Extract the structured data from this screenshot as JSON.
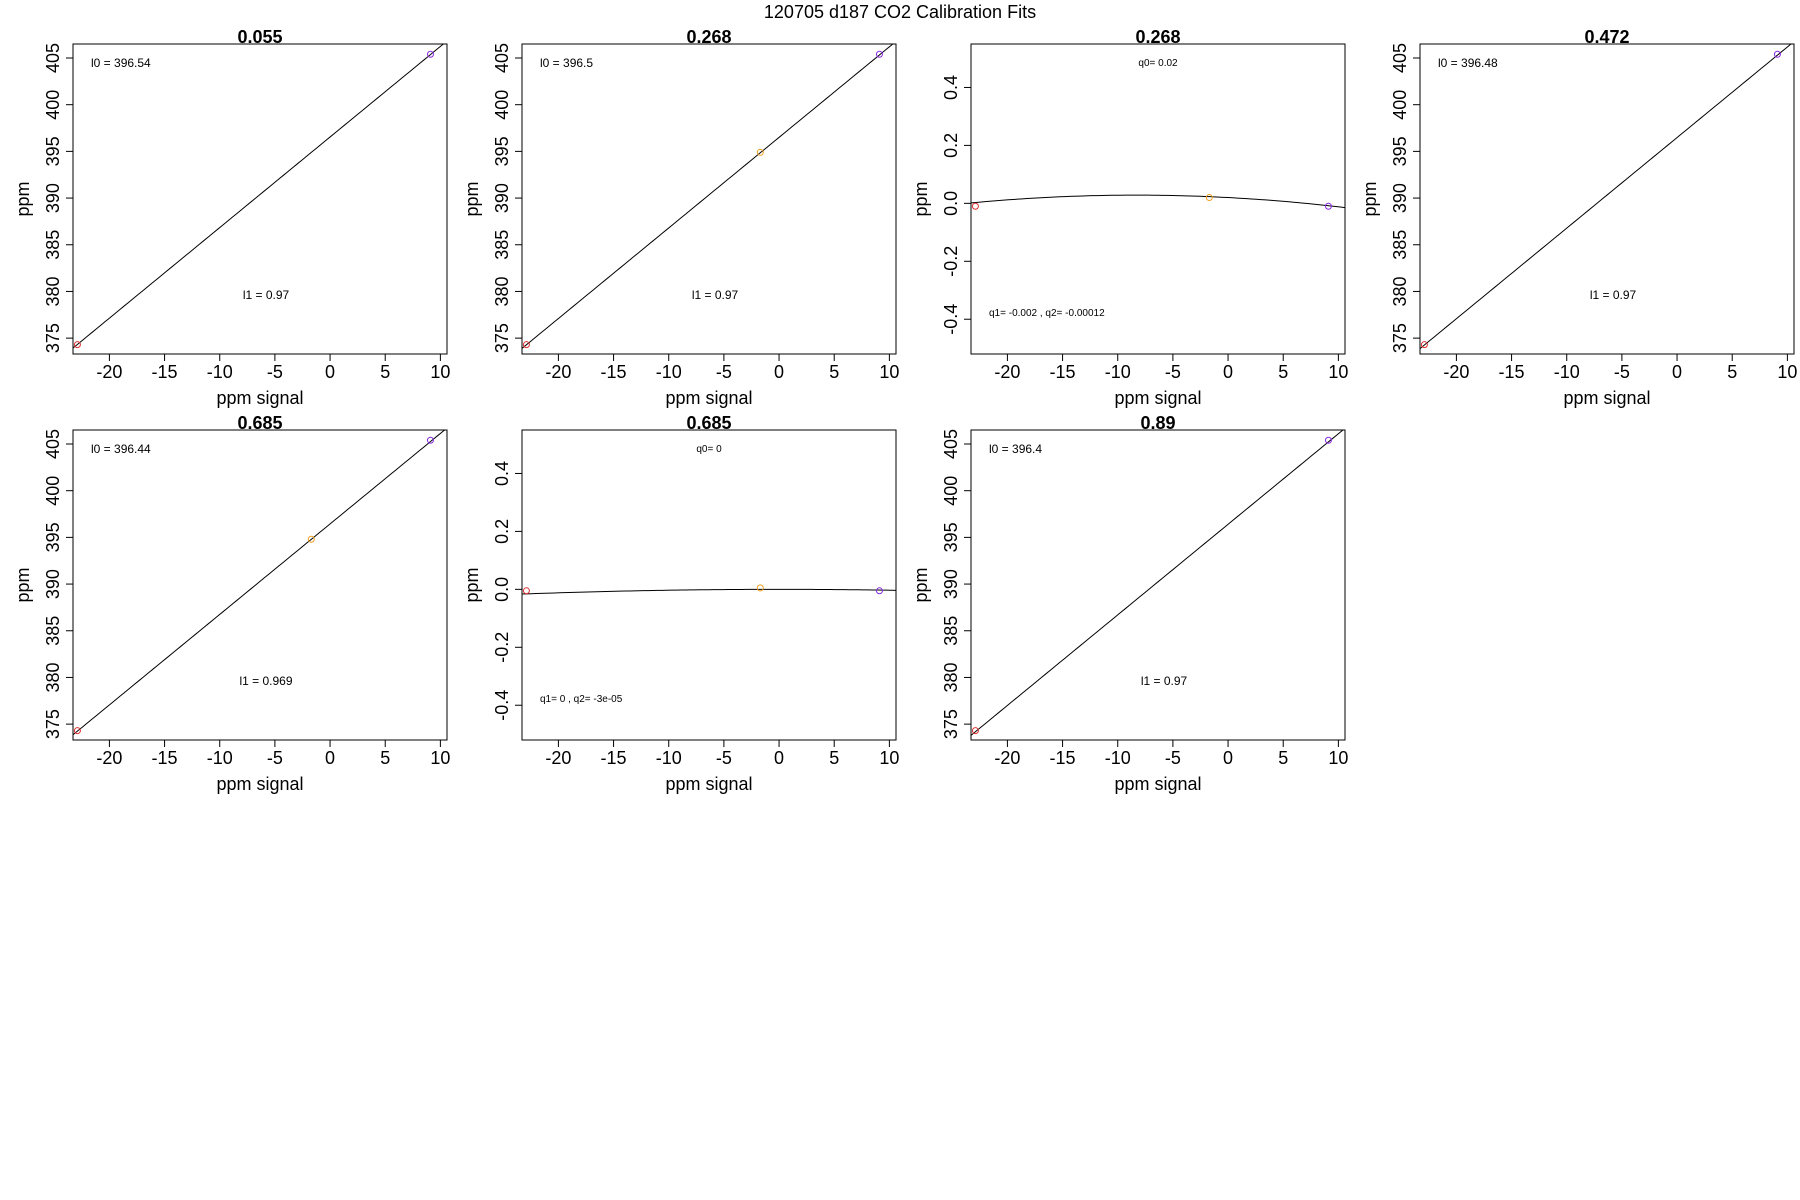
{
  "figure": {
    "title": "120705   d187   CO2 Calibration Fits",
    "colors": {
      "line": "#000000",
      "frame": "#000000",
      "point_low": "#e03030",
      "point_mid": "#f0a020",
      "point_high": "#8a2be2"
    }
  },
  "chart_data": [
    {
      "type": "scatter",
      "title": "0.055",
      "xlabel": "ppm signal",
      "ylabel": "ppm",
      "xlim": [
        -23.3,
        10.6
      ],
      "ylim": [
        373.3,
        406.5
      ],
      "xticks": [
        -20,
        -15,
        -10,
        -5,
        0,
        5,
        10
      ],
      "yticks": [
        375,
        380,
        385,
        390,
        395,
        400,
        405
      ],
      "fit": "linear",
      "fit_coef": {
        "l0": 396.54,
        "l1": 0.97
      },
      "points": [
        {
          "x": -22.9,
          "y": 374.3,
          "color": "point_low"
        },
        {
          "x": 9.1,
          "y": 405.4,
          "color": "point_high"
        }
      ],
      "annotations": [
        "l0 =  396.54",
        "l1 =  0.97"
      ]
    },
    {
      "type": "scatter",
      "title": "0.268",
      "xlabel": "ppm signal",
      "ylabel": "ppm",
      "xlim": [
        -23.3,
        10.6
      ],
      "ylim": [
        373.3,
        406.5
      ],
      "xticks": [
        -20,
        -15,
        -10,
        -5,
        0,
        5,
        10
      ],
      "yticks": [
        375,
        380,
        385,
        390,
        395,
        400,
        405
      ],
      "fit": "linear",
      "fit_coef": {
        "l0": 396.5,
        "l1": 0.97
      },
      "points": [
        {
          "x": -22.9,
          "y": 374.3,
          "color": "point_low"
        },
        {
          "x": -1.7,
          "y": 394.9,
          "color": "point_mid"
        },
        {
          "x": 9.1,
          "y": 405.4,
          "color": "point_high"
        }
      ],
      "annotations": [
        "l0 =  396.5",
        "l1 =  0.97"
      ]
    },
    {
      "type": "scatter",
      "title": "0.268",
      "xlabel": "ppm signal",
      "ylabel": "ppm",
      "xlim": [
        -23.3,
        10.6
      ],
      "ylim": [
        -0.52,
        0.55
      ],
      "xticks": [
        -20,
        -15,
        -10,
        -5,
        0,
        5,
        10
      ],
      "yticks": [
        -0.4,
        -0.2,
        0.0,
        0.2,
        0.4
      ],
      "ytick_labels": [
        "-0.4",
        "-0.2",
        "0.0",
        "0.2",
        "0.4"
      ],
      "fit": "quadratic",
      "fit_coef": {
        "q0": 0.02,
        "q1": -0.002,
        "q2": -0.00012
      },
      "points": [
        {
          "x": -22.9,
          "y": -0.01,
          "color": "point_low"
        },
        {
          "x": -1.7,
          "y": 0.02,
          "color": "point_mid"
        },
        {
          "x": 9.1,
          "y": -0.01,
          "color": "point_high"
        }
      ],
      "annotations": [
        "q0= 0.02",
        "q1= -0.002 , q2= -0.00012"
      ]
    },
    {
      "type": "scatter",
      "title": "0.472",
      "xlabel": "ppm signal",
      "ylabel": "ppm",
      "xlim": [
        -23.3,
        10.6
      ],
      "ylim": [
        373.3,
        406.5
      ],
      "xticks": [
        -20,
        -15,
        -10,
        -5,
        0,
        5,
        10
      ],
      "yticks": [
        375,
        380,
        385,
        390,
        395,
        400,
        405
      ],
      "fit": "linear",
      "fit_coef": {
        "l0": 396.48,
        "l1": 0.97
      },
      "points": [
        {
          "x": -22.9,
          "y": 374.3,
          "color": "point_low"
        },
        {
          "x": 9.1,
          "y": 405.4,
          "color": "point_high"
        }
      ],
      "annotations": [
        "l0 =  396.48",
        "l1 =  0.97"
      ]
    },
    {
      "type": "scatter",
      "title": "0.685",
      "xlabel": "ppm signal",
      "ylabel": "ppm",
      "xlim": [
        -23.3,
        10.6
      ],
      "ylim": [
        373.3,
        406.5
      ],
      "xticks": [
        -20,
        -15,
        -10,
        -5,
        0,
        5,
        10
      ],
      "yticks": [
        375,
        380,
        385,
        390,
        395,
        400,
        405
      ],
      "fit": "linear",
      "fit_coef": {
        "l0": 396.44,
        "l1": 0.969
      },
      "points": [
        {
          "x": -22.9,
          "y": 374.3,
          "color": "point_low"
        },
        {
          "x": -1.7,
          "y": 394.8,
          "color": "point_mid"
        },
        {
          "x": 9.1,
          "y": 405.4,
          "color": "point_high"
        }
      ],
      "annotations": [
        "l0 =  396.44",
        "l1 =  0.969"
      ]
    },
    {
      "type": "scatter",
      "title": "0.685",
      "xlabel": "ppm signal",
      "ylabel": "ppm",
      "xlim": [
        -23.3,
        10.6
      ],
      "ylim": [
        -0.52,
        0.55
      ],
      "xticks": [
        -20,
        -15,
        -10,
        -5,
        0,
        5,
        10
      ],
      "yticks": [
        -0.4,
        -0.2,
        0.0,
        0.2,
        0.4
      ],
      "ytick_labels": [
        "-0.4",
        "-0.2",
        "0.0",
        "0.2",
        "0.4"
      ],
      "fit": "quadratic",
      "fit_coef": {
        "q0": 0,
        "q1": 0,
        "q2": -3e-05
      },
      "points": [
        {
          "x": -22.9,
          "y": -0.005,
          "color": "point_low"
        },
        {
          "x": -1.7,
          "y": 0.005,
          "color": "point_mid"
        },
        {
          "x": 9.1,
          "y": -0.005,
          "color": "point_high"
        }
      ],
      "annotations": [
        "q0= 0",
        "q1= 0 , q2= -3e-05"
      ]
    },
    {
      "type": "scatter",
      "title": "0.89",
      "xlabel": "ppm signal",
      "ylabel": "ppm",
      "xlim": [
        -23.3,
        10.6
      ],
      "ylim": [
        373.3,
        406.5
      ],
      "xticks": [
        -20,
        -15,
        -10,
        -5,
        0,
        5,
        10
      ],
      "yticks": [
        375,
        380,
        385,
        390,
        395,
        400,
        405
      ],
      "fit": "linear",
      "fit_coef": {
        "l0": 396.4,
        "l1": 0.97
      },
      "points": [
        {
          "x": -22.9,
          "y": 374.3,
          "color": "point_low"
        },
        {
          "x": 9.1,
          "y": 405.4,
          "color": "point_high"
        }
      ],
      "annotations": [
        "l0 =  396.4",
        "l1 =  0.97"
      ]
    }
  ]
}
